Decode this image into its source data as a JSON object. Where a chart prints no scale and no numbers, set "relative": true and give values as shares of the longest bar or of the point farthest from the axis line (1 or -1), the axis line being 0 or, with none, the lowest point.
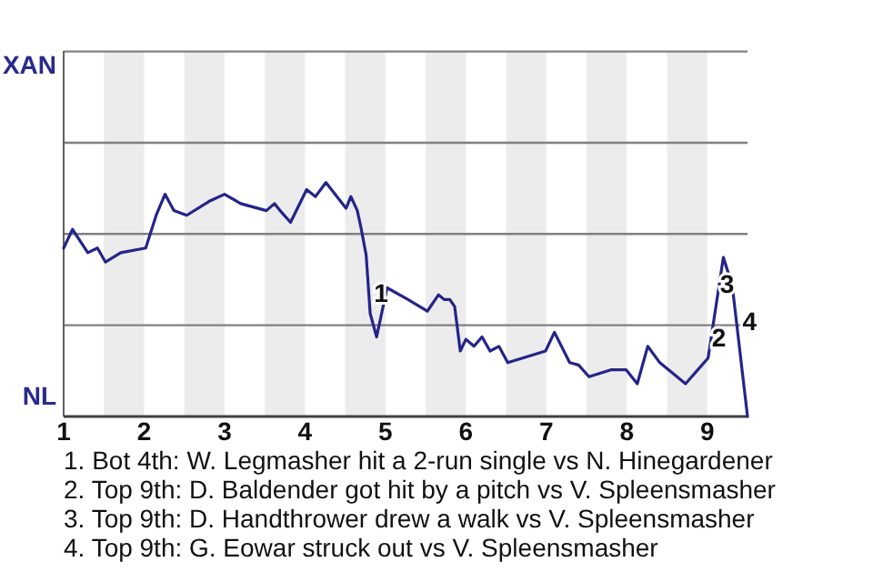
{
  "chart_data": {
    "type": "line",
    "relative": true,
    "xlim": [
      1,
      9.5
    ],
    "xticks": [
      1,
      2,
      3,
      4,
      5,
      6,
      7,
      8,
      9
    ],
    "marker": "none",
    "line_style": "solid",
    "ref_lines": [
      {
        "axis": "y",
        "value": 0.39,
        "color": "#808080"
      },
      {
        "axis": "y",
        "value": 0.78,
        "color": "#808080"
      },
      {
        "axis": "y",
        "value": 1.17,
        "color": "#808080"
      },
      {
        "axis": "y",
        "value": 1.56,
        "color": "#808080"
      }
    ],
    "bands": [
      {
        "axis": "x",
        "from": 1.5,
        "to": 2,
        "color": "#ececec"
      },
      {
        "axis": "x",
        "from": 2.5,
        "to": 3,
        "color": "#ececec"
      },
      {
        "axis": "x",
        "from": 3.5,
        "to": 4,
        "color": "#ececec"
      },
      {
        "axis": "x",
        "from": 4.5,
        "to": 5,
        "color": "#ececec"
      },
      {
        "axis": "x",
        "from": 5.5,
        "to": 6,
        "color": "#ececec"
      },
      {
        "axis": "x",
        "from": 6.5,
        "to": 7,
        "color": "#ececec"
      },
      {
        "axis": "x",
        "from": 7.5,
        "to": 8,
        "color": "#ececec"
      },
      {
        "axis": "x",
        "from": 8.5,
        "to": 9,
        "color": "#ececec"
      }
    ],
    "series": [
      {
        "color": "#24248a",
        "x": [
          1,
          1.11,
          1.3,
          1.42,
          1.52,
          1.71,
          2.02,
          2.15,
          2.26,
          2.37,
          2.53,
          2.81,
          3,
          3.2,
          3.52,
          3.62,
          3.69,
          3.82,
          4.02,
          4.13,
          4.26,
          4.51,
          4.57,
          4.65,
          4.7,
          4.76,
          4.81,
          4.89,
          5.02,
          5.28,
          5.52,
          5.66,
          5.73,
          5.8,
          5.86,
          5.93,
          6,
          6.1,
          6.2,
          6.3,
          6.41,
          6.52,
          6.99,
          7.1,
          7.29,
          7.4,
          7.53,
          7.81,
          7.99,
          8.13,
          8.26,
          8.41,
          8.73,
          9.01,
          9.2,
          9.31,
          9.5
        ],
        "values": [
          0.72,
          0.8,
          0.7,
          0.72,
          0.66,
          0.7,
          0.72,
          0.86,
          0.95,
          0.88,
          0.86,
          0.92,
          0.95,
          0.91,
          0.88,
          0.91,
          0.88,
          0.83,
          0.97,
          0.94,
          1,
          0.89,
          0.94,
          0.88,
          0.8,
          0.69,
          0.44,
          0.34,
          0.55,
          0.5,
          0.45,
          0.52,
          0.5,
          0.5,
          0.47,
          0.28,
          0.33,
          0.3,
          0.34,
          0.28,
          0.3,
          0.23,
          0.28,
          0.36,
          0.23,
          0.22,
          0.17,
          0.2,
          0.2,
          0.14,
          0.3,
          0.23,
          0.14,
          0.25,
          0.68,
          0.56,
          0
        ]
      }
    ],
    "annotations": [
      "XAN",
      "NL",
      {
        "text": "1",
        "x": 4.81,
        "y": 0.44
      },
      {
        "text": "2",
        "x": 9.01,
        "y": 0.25
      },
      {
        "text": "3",
        "x": 9.11,
        "y": 0.48
      },
      {
        "text": "4",
        "x": 9.39,
        "y": 0.32
      },
      "1. Bot 4th: W. Legmasher hit a 2-run single vs N. Hinegardener",
      "2. Top 9th: D. Baldender got hit by a pitch vs V. Spleensmasher",
      "3. Top 9th: D. Handthrower drew a walk vs V. Spleensmasher",
      "4. Top 9th: G. Eowar struck out vs V. Spleensmasher"
    ]
  }
}
